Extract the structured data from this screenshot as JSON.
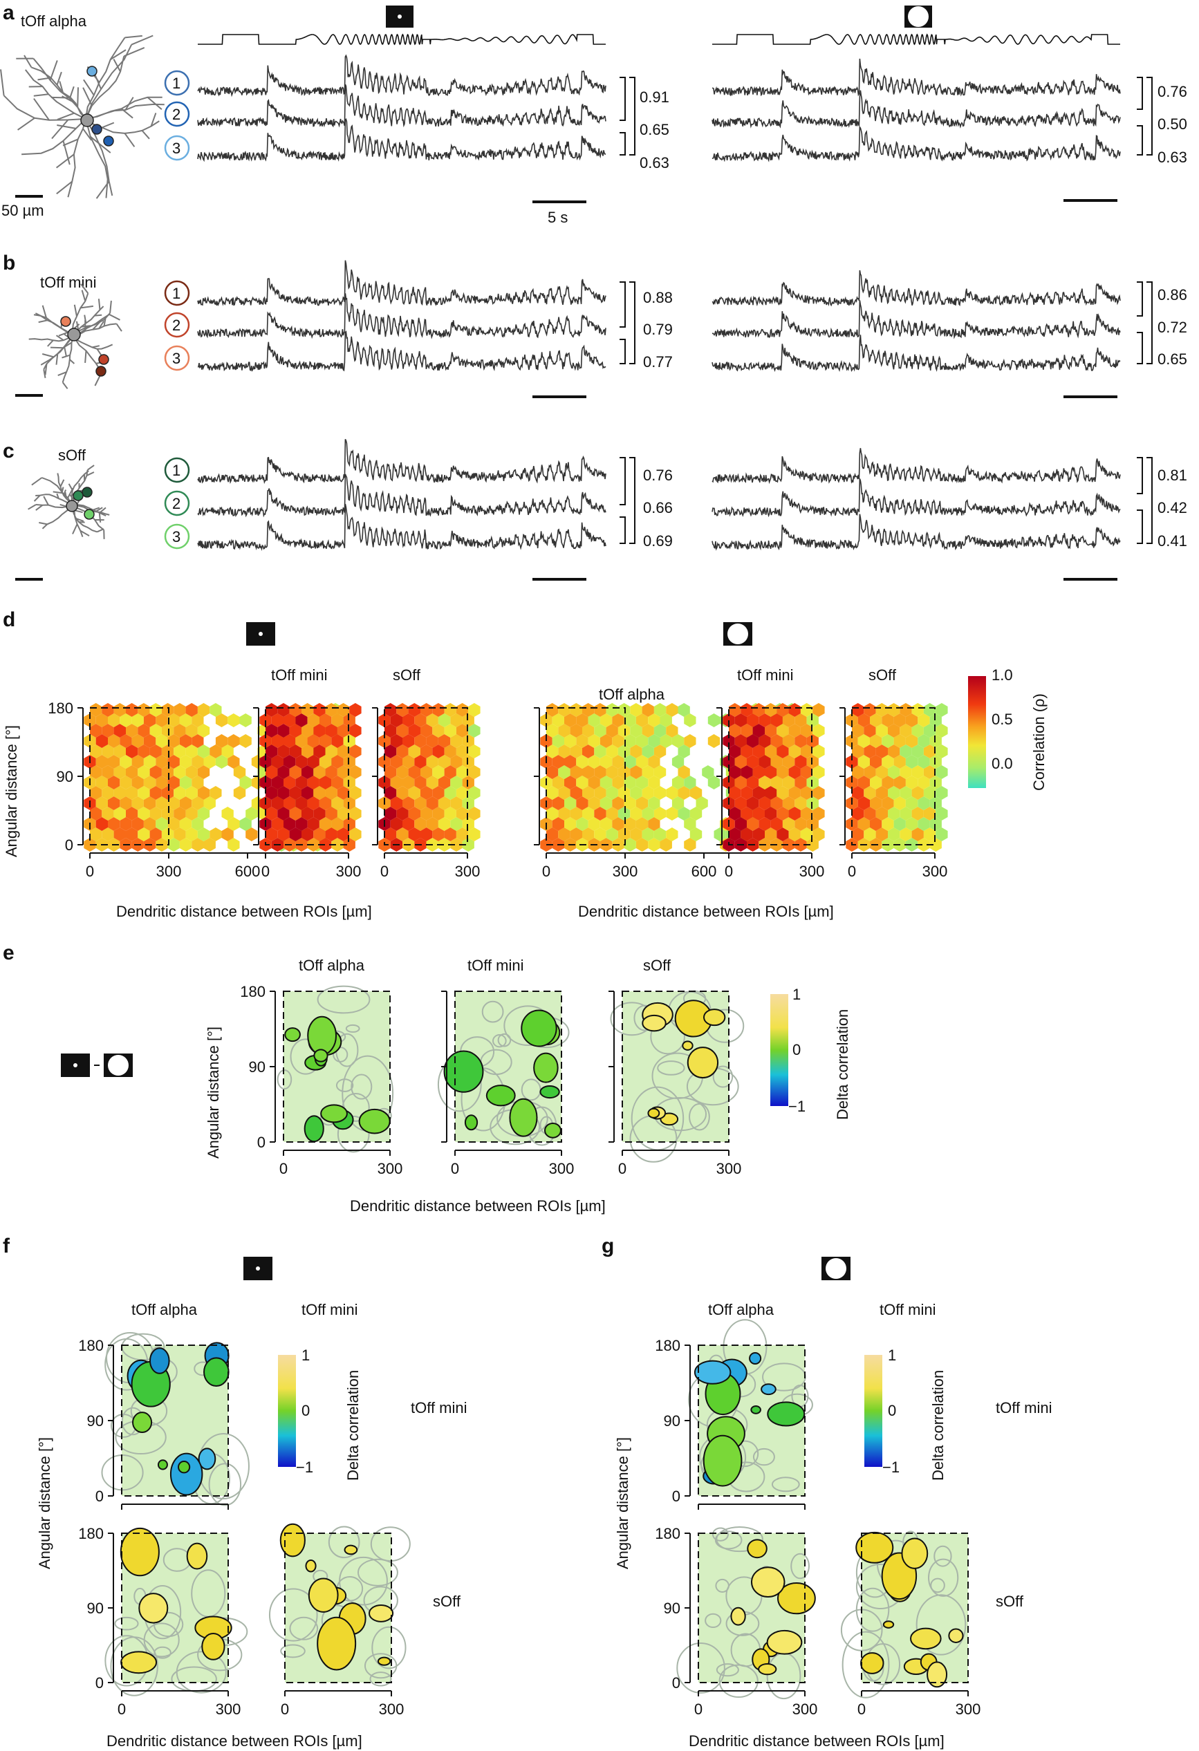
{
  "panels": {
    "a": {
      "letter": "a",
      "cell": "tOff alpha",
      "scale": "50 µm",
      "time_scale": "5 s",
      "rois": [
        "1",
        "2",
        "3"
      ],
      "roi_colors": [
        "#3b6fb0",
        "#2163b3",
        "#6aaee0"
      ],
      "cell_dots": [
        "#6aaee0",
        "#2d4f8a",
        "#1f5fb0"
      ],
      "spot_corr": [
        "0.91",
        "0.65",
        "0.63"
      ],
      "surround_corr": [
        "0.76",
        "0.50",
        "0.63"
      ]
    },
    "b": {
      "letter": "b",
      "cell": "tOff mini",
      "rois": [
        "1",
        "2",
        "3"
      ],
      "roi_colors": [
        "#7a2a14",
        "#c0432a",
        "#e8805a"
      ],
      "cell_dots": [
        "#e8805a",
        "#c0432a",
        "#7a2a14"
      ],
      "spot_corr": [
        "0.88",
        "0.79",
        "0.77"
      ],
      "surround_corr": [
        "0.86",
        "0.72",
        "0.65"
      ]
    },
    "c": {
      "letter": "c",
      "cell": "sOff",
      "rois": [
        "1",
        "2",
        "3"
      ],
      "roi_colors": [
        "#1e5a3a",
        "#2f8a55",
        "#6fd06a"
      ],
      "cell_dots": [
        "#1e5a3a",
        "#2f8a55",
        "#6fd06a"
      ],
      "spot_corr": [
        "0.76",
        "0.66",
        "0.69"
      ],
      "surround_corr": [
        "0.81",
        "0.42",
        "0.41"
      ]
    },
    "d": {
      "letter": "d",
      "titles": [
        "tOff alpha",
        "tOff mini",
        "sOff"
      ],
      "ylabel": "Angular distance [°]",
      "xlabel": "Dendritic distance between ROIs [µm]",
      "yticks": [
        "0",
        "90",
        "180"
      ],
      "xticks_wide": [
        "0",
        "300",
        "600"
      ],
      "xticks_narrow": [
        "0",
        "300"
      ],
      "colorbar_label": "Correlation (ρ)",
      "colorbar_ticks": [
        "1.0",
        "0.5",
        "0.0"
      ]
    },
    "e": {
      "letter": "e",
      "titles": [
        "tOff alpha",
        "tOff mini",
        "sOff"
      ],
      "ylabel": "Angular distance [°]",
      "xlabel": "Dendritic distance between ROIs [µm]",
      "yticks": [
        "0",
        "90",
        "180"
      ],
      "xticks": [
        "0",
        "300"
      ],
      "colorbar_label": "Delta correlation",
      "colorbar_ticks": [
        "1",
        "0",
        "−1"
      ]
    },
    "f": {
      "letter": "f",
      "cols": [
        "tOff alpha",
        "tOff mini"
      ],
      "rows": [
        "tOff mini",
        "sOff"
      ],
      "ylabel": "Angular distance [°]",
      "xlabel": "Dendritic distance between ROIs [µm]",
      "colorbar_label": "Delta correlation",
      "colorbar_ticks": [
        "1",
        "0",
        "−1"
      ]
    },
    "g": {
      "letter": "g",
      "cols": [
        "tOff alpha",
        "tOff mini"
      ],
      "rows": [
        "tOff mini",
        "sOff"
      ],
      "ylabel": "Angular distance [°]",
      "xlabel": "Dendritic distance between ROIs [µm]",
      "colorbar_label": "Delta correlation",
      "colorbar_ticks": [
        "1",
        "0",
        "−1"
      ]
    }
  },
  "stimulus": {
    "spot": "local chirp",
    "surround": "full-field chirp"
  },
  "colors": {
    "trace": "#333333",
    "axis": "#111111"
  }
}
